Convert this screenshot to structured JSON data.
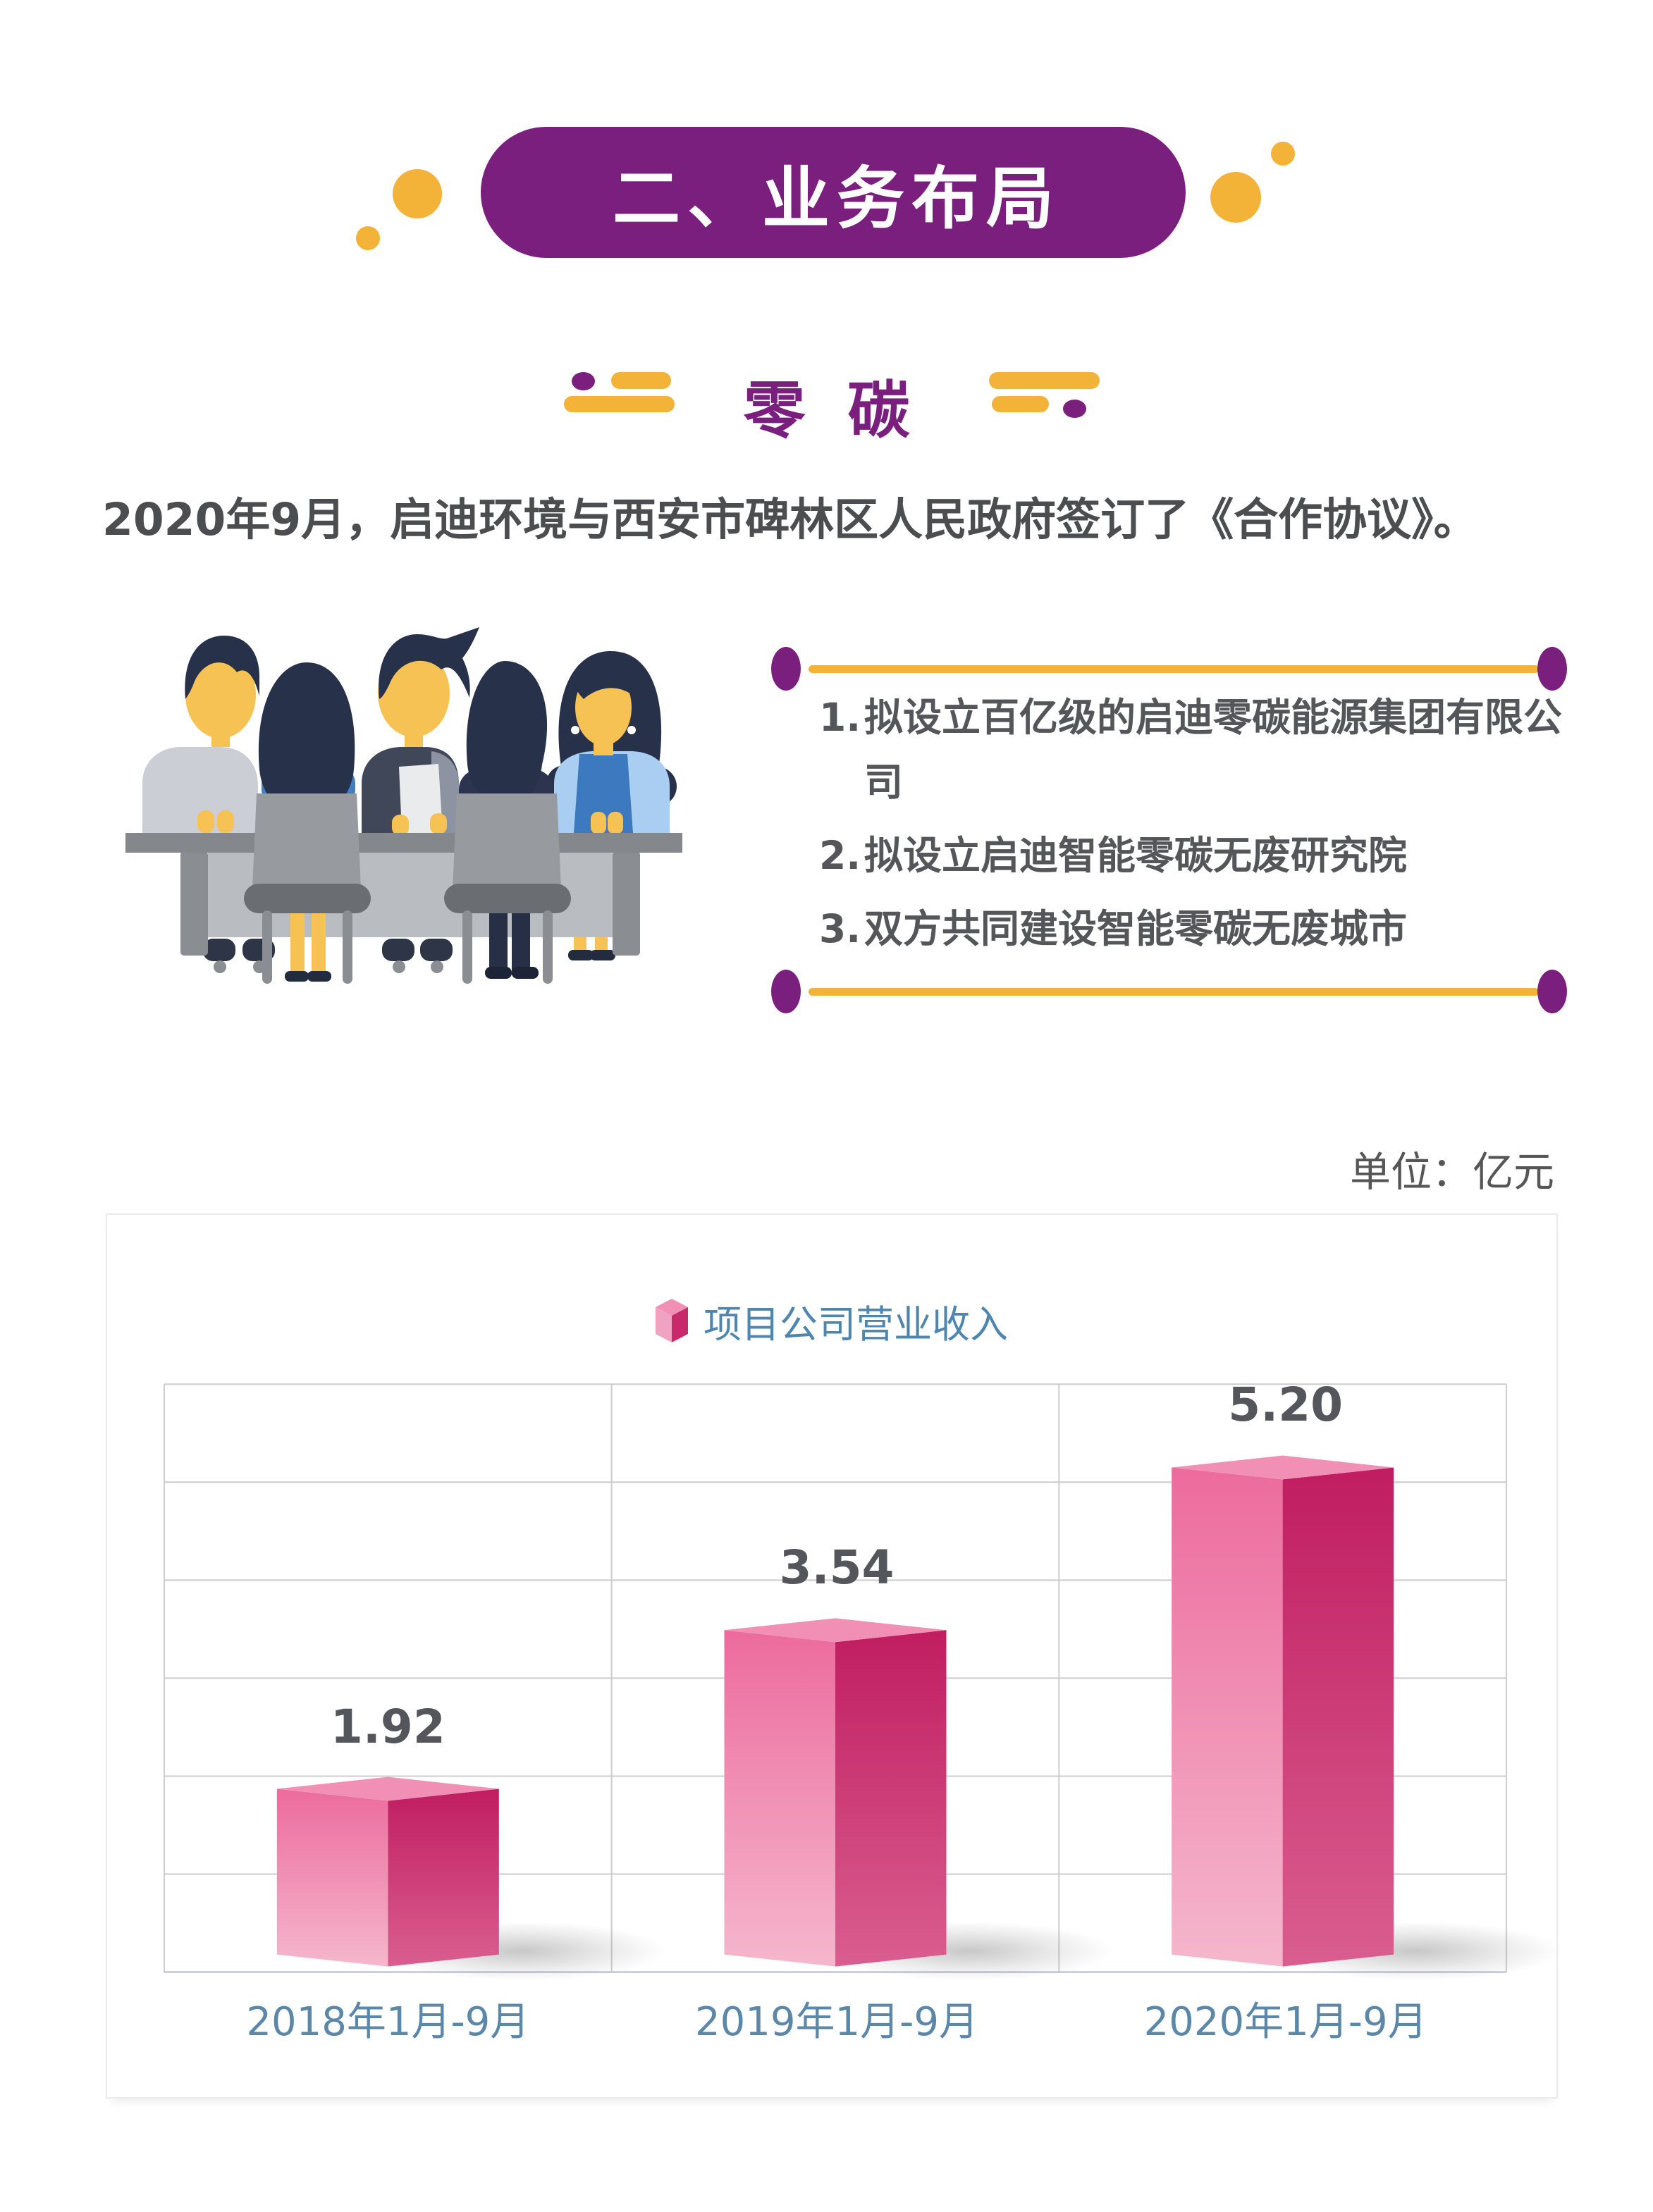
{
  "theme": {
    "accent_purple": "#7b1f7e",
    "accent_yellow": "#f2b338",
    "text_dark": "#4c4d4f",
    "text_list": "#55565a",
    "axis_blue": "#5b87a8"
  },
  "banner": {
    "title": "二、业务布局"
  },
  "section_header": {
    "title": "零碳"
  },
  "intro_text": "2020年9月，启迪环境与西安市碑林区人民政府签订了《合作协议》。",
  "agreement_panel": {
    "items": [
      {
        "num": "1.",
        "text": "拟设立百亿级的启迪零碳能源集团有限公司"
      },
      {
        "num": "2.",
        "text": "拟设立启迪智能零碳无废研究院"
      },
      {
        "num": "3.",
        "text": "双方共同建设智能零碳无废城市"
      }
    ]
  },
  "unit_label": "单位：亿元",
  "chart_data": {
    "type": "bar",
    "title": "",
    "legend": [
      {
        "label": "项目公司营业收入"
      }
    ],
    "categories": [
      "2018年1月-9月",
      "2019年1月-9月",
      "2020年1月-9月"
    ],
    "values": [
      1.92,
      3.54,
      5.2
    ],
    "value_labels": [
      "1.92",
      "3.54",
      "5.20"
    ],
    "unit": "亿元",
    "ylabel": "",
    "xlabel": "",
    "ylim": [
      0,
      6
    ],
    "grid_rows": 6,
    "grid_cols": 3,
    "grid_on": true,
    "legend_position": "top-center",
    "bar_style": "3d-cube",
    "colors": {
      "front_top": "#ec6b9d",
      "front_bottom": "#f5b7cc",
      "side_top": "#c01d60",
      "side_bottom": "#da5e90",
      "top_face": "#f28fb4",
      "shadow": "#6e6e6e",
      "grid": "#cccccc",
      "axis": "#c9cdd9",
      "value_label": "#55565b",
      "category_label": "#5b87a8",
      "legend_text": "#4e86b0"
    }
  }
}
